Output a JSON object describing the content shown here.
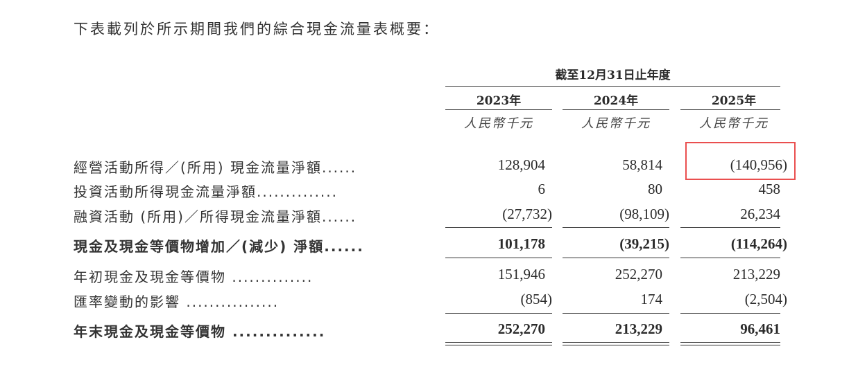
{
  "intro": "下表載列於所示期間我們的綜合現金流量表概要：",
  "header": {
    "period": "截至12月31日止年度",
    "years": [
      "2023年",
      "2024年",
      "2025年"
    ],
    "units": [
      "人民幣千元",
      "人民幣千元",
      "人民幣千元"
    ]
  },
  "rows": [
    {
      "label": "經營活動所得／(所用) 現金流量淨額......",
      "values": [
        "128,904",
        "58,814",
        "(140,956)"
      ]
    },
    {
      "label": "投資活動所得現金流量淨額..............",
      "values": [
        "6",
        "80",
        "458"
      ]
    },
    {
      "label": "融資活動 (所用)／所得現金流量淨額......",
      "values": [
        "(27,732)",
        "(98,109)",
        "26,234"
      ]
    },
    {
      "label": "現金及現金等價物增加／(減少) 淨額......",
      "values": [
        "101,178",
        "(39,215)",
        "(114,264)"
      ]
    },
    {
      "label": "年初現金及現金等價物 ..............",
      "values": [
        "151,946",
        "252,270",
        "213,229"
      ]
    },
    {
      "label": "匯率變動的影響 ................",
      "values": [
        "(854)",
        "174",
        "(2,504)"
      ]
    },
    {
      "label": "年末現金及現金等價物 ..............",
      "values": [
        "252,270",
        "213,229",
        "96,461"
      ]
    }
  ],
  "highlight_color": "#ea4f4f"
}
